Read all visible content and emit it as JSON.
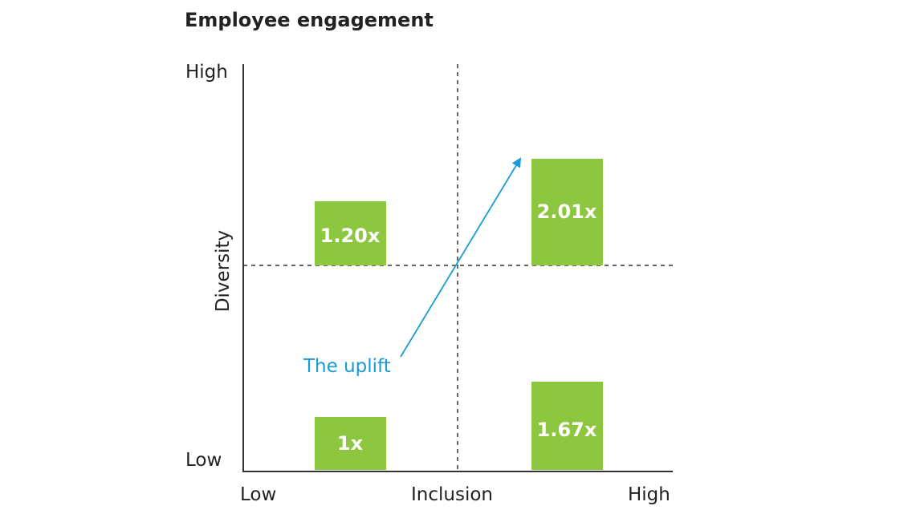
{
  "chart_data": {
    "type": "bar",
    "title": "Employee engagement",
    "xlabel": "Inclusion",
    "ylabel": "Diversity",
    "x_ticks": [
      "Low",
      "High"
    ],
    "y_ticks": [
      "Low",
      "High"
    ],
    "quadrants": [
      {
        "inclusion": "Low",
        "diversity": "Low",
        "label": "1x",
        "value": 1.0
      },
      {
        "inclusion": "Low",
        "diversity": "High",
        "label": "1.20x",
        "value": 1.2
      },
      {
        "inclusion": "High",
        "diversity": "Low",
        "label": "1.67x",
        "value": 1.67
      },
      {
        "inclusion": "High",
        "diversity": "High",
        "label": "2.01x",
        "value": 2.01
      }
    ],
    "annotation": {
      "text": "The uplift",
      "from": "Low inclusion / Low diversity",
      "to": "High inclusion / High diversity"
    },
    "colors": {
      "bar": "#8dc63f",
      "arrow": "#1a9bd7",
      "text": "#222222",
      "divider": "#333333"
    }
  }
}
